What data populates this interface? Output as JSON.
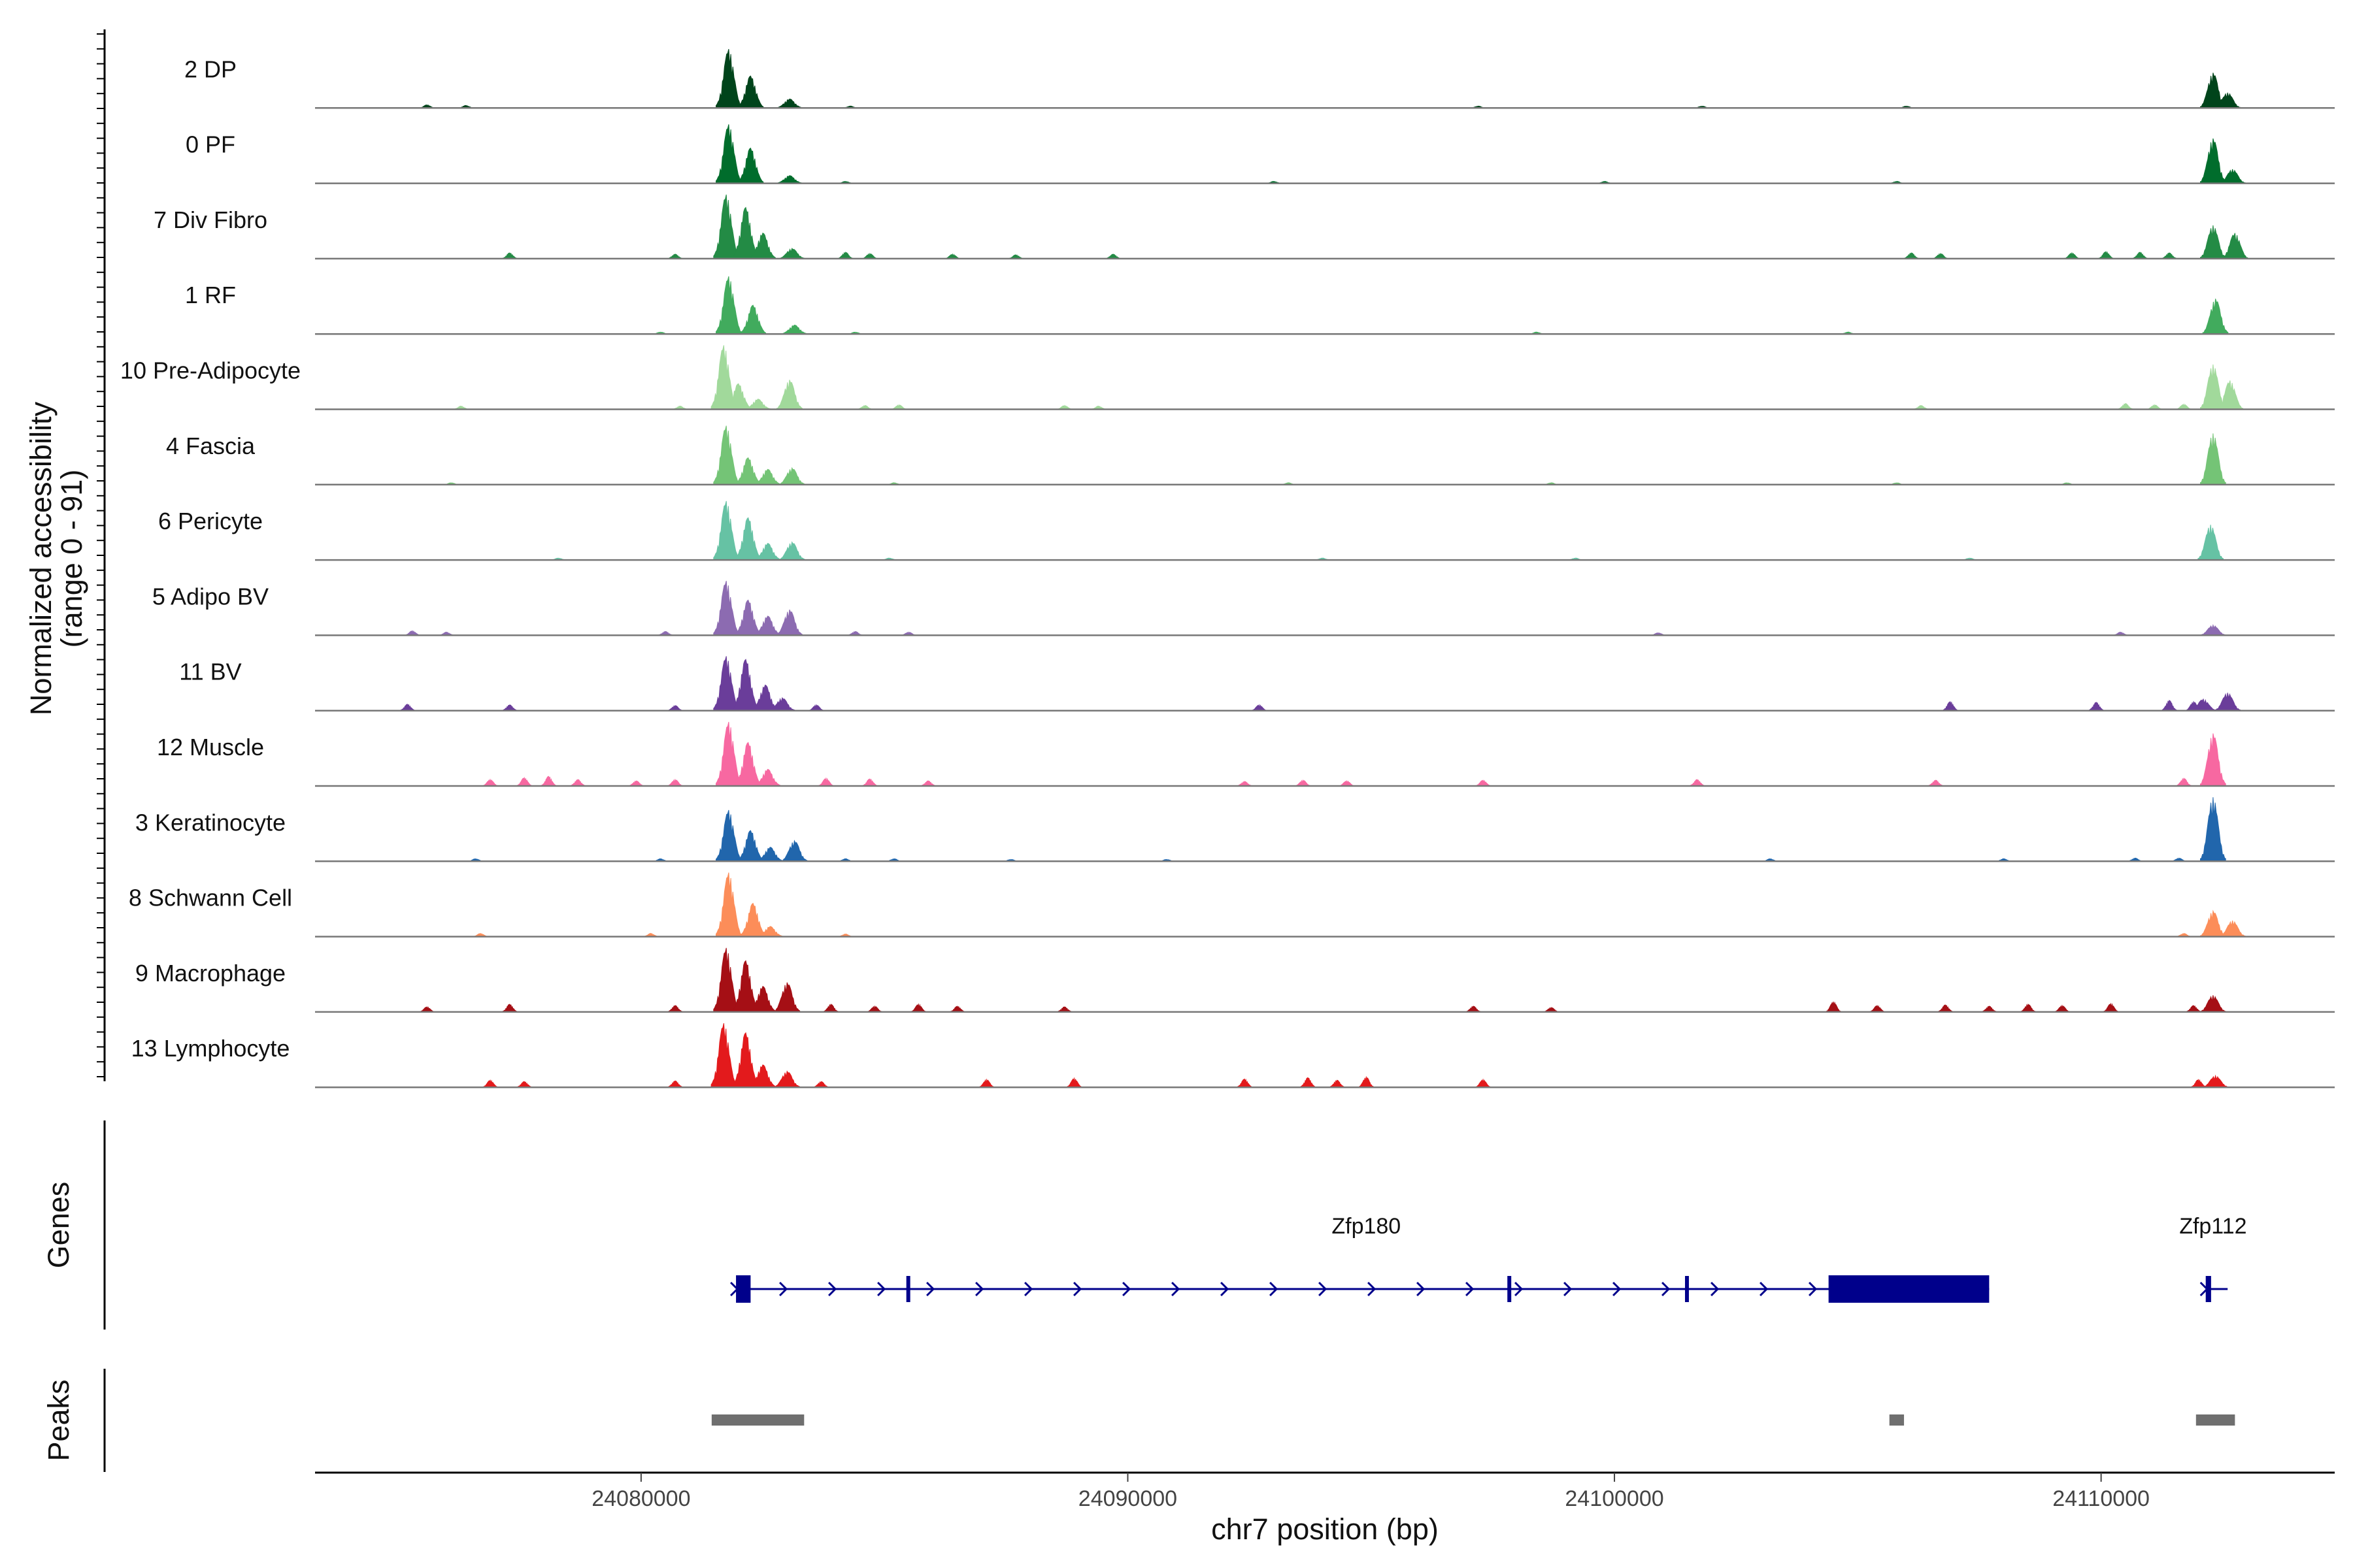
{
  "chart_data": {
    "type": "area",
    "title": "",
    "ylabel_line1": "Normalized accessibility",
    "ylabel_line2": "(range 0 - 91)",
    "xlabel": "chr7 position (bp)",
    "chrom": "chr7",
    "xlim": [
      24073300,
      24114800
    ],
    "ylim": [
      0,
      91
    ],
    "xticks": [
      {
        "value": 24080000,
        "label": "24080000"
      },
      {
        "value": 24090000,
        "label": "24090000"
      },
      {
        "value": 24100000,
        "label": "24100000"
      },
      {
        "value": 24110000,
        "label": "24110000"
      }
    ],
    "tracks": [
      {
        "name": "2 DP",
        "color": "#00441b",
        "peaks": [
          [
            24081800,
            92
          ],
          [
            24082250,
            50
          ],
          [
            24083050,
            14
          ],
          [
            24112300,
            55
          ],
          [
            24112600,
            24
          ]
        ],
        "noise": [
          [
            24075600,
            5
          ],
          [
            24076400,
            4
          ],
          [
            24084300,
            3
          ],
          [
            24097200,
            3
          ],
          [
            24101800,
            3
          ],
          [
            24106000,
            3
          ]
        ]
      },
      {
        "name": "0 PF",
        "color": "#006d2c",
        "peaks": [
          [
            24081800,
            92
          ],
          [
            24082250,
            55
          ],
          [
            24083050,
            12
          ],
          [
            24112300,
            70
          ],
          [
            24112700,
            22
          ]
        ],
        "noise": [
          [
            24084200,
            3
          ],
          [
            24093000,
            3
          ],
          [
            24099800,
            3
          ],
          [
            24105800,
            3
          ]
        ]
      },
      {
        "name": "7 Div Fibro",
        "color": "#238b45",
        "peaks": [
          [
            24081750,
            100
          ],
          [
            24082150,
            80
          ],
          [
            24082500,
            40
          ],
          [
            24083100,
            16
          ],
          [
            24112300,
            52
          ],
          [
            24112750,
            40
          ]
        ],
        "noise": [
          [
            24077300,
            9
          ],
          [
            24080700,
            7
          ],
          [
            24084200,
            10
          ],
          [
            24084700,
            8
          ],
          [
            24086400,
            7
          ],
          [
            24087700,
            6
          ],
          [
            24089700,
            7
          ],
          [
            24106100,
            9
          ],
          [
            24106700,
            8
          ],
          [
            24109400,
            9
          ],
          [
            24110100,
            11
          ],
          [
            24110800,
            10
          ],
          [
            24111400,
            9
          ]
        ]
      },
      {
        "name": "1 RF",
        "color": "#41ab5d",
        "peaks": [
          [
            24081800,
            90
          ],
          [
            24082300,
            45
          ],
          [
            24083150,
            14
          ],
          [
            24112350,
            55
          ]
        ],
        "noise": [
          [
            24080400,
            3
          ],
          [
            24084400,
            3
          ],
          [
            24098400,
            3
          ],
          [
            24104800,
            3
          ]
        ]
      },
      {
        "name": "10 Pre-Adipocyte",
        "color": "#a1d99b",
        "peaks": [
          [
            24081700,
            100
          ],
          [
            24082000,
            40
          ],
          [
            24082400,
            16
          ],
          [
            24083050,
            46
          ],
          [
            24112300,
            70
          ],
          [
            24112650,
            45
          ]
        ],
        "noise": [
          [
            24076300,
            5
          ],
          [
            24080800,
            5
          ],
          [
            24084600,
            6
          ],
          [
            24085300,
            7
          ],
          [
            24088700,
            6
          ],
          [
            24089400,
            5
          ],
          [
            24106300,
            6
          ],
          [
            24110500,
            9
          ],
          [
            24111100,
            7
          ],
          [
            24111700,
            8
          ]
        ]
      },
      {
        "name": "4 Fascia",
        "color": "#74c476",
        "peaks": [
          [
            24081750,
            92
          ],
          [
            24082200,
            42
          ],
          [
            24082600,
            24
          ],
          [
            24083100,
            26
          ],
          [
            24112300,
            80
          ]
        ],
        "noise": [
          [
            24076100,
            3
          ],
          [
            24085200,
            3
          ],
          [
            24093300,
            3
          ],
          [
            24098700,
            3
          ],
          [
            24105800,
            3
          ],
          [
            24109300,
            3
          ]
        ]
      },
      {
        "name": "6 Pericyte",
        "color": "#66c2a4",
        "peaks": [
          [
            24081750,
            92
          ],
          [
            24082200,
            66
          ],
          [
            24082600,
            26
          ],
          [
            24083100,
            28
          ],
          [
            24112250,
            55
          ]
        ],
        "noise": [
          [
            24078300,
            3
          ],
          [
            24085100,
            3
          ],
          [
            24094000,
            3
          ],
          [
            24099200,
            3
          ],
          [
            24107300,
            3
          ]
        ]
      },
      {
        "name": "5 Adipo BV",
        "color": "#8c6bb1",
        "peaks": [
          [
            24081750,
            85
          ],
          [
            24082200,
            55
          ],
          [
            24082600,
            30
          ],
          [
            24083050,
            40
          ],
          [
            24112300,
            16
          ]
        ],
        "noise": [
          [
            24075300,
            7
          ],
          [
            24076000,
            5
          ],
          [
            24080500,
            6
          ],
          [
            24084400,
            6
          ],
          [
            24085500,
            5
          ],
          [
            24100900,
            4
          ],
          [
            24110400,
            5
          ]
        ]
      },
      {
        "name": "11 BV",
        "color": "#6a3d9a",
        "peaks": [
          [
            24081750,
            85
          ],
          [
            24082150,
            80
          ],
          [
            24082550,
            40
          ],
          [
            24082900,
            20
          ],
          [
            24112600,
            28
          ],
          [
            24112100,
            18
          ]
        ],
        "noise": [
          [
            24075200,
            10
          ],
          [
            24077300,
            9
          ],
          [
            24080700,
            8
          ],
          [
            24083600,
            9
          ],
          [
            24092700,
            9
          ],
          [
            24106900,
            14
          ],
          [
            24109900,
            13
          ],
          [
            24111400,
            16
          ],
          [
            24111900,
            14
          ]
        ]
      },
      {
        "name": "12 Muscle",
        "color": "#f768a1",
        "peaks": [
          [
            24081800,
            100
          ],
          [
            24082200,
            68
          ],
          [
            24082600,
            26
          ],
          [
            24112300,
            82
          ]
        ],
        "noise": [
          [
            24076900,
            10
          ],
          [
            24077600,
            13
          ],
          [
            24078100,
            15
          ],
          [
            24078700,
            10
          ],
          [
            24079900,
            8
          ],
          [
            24080700,
            10
          ],
          [
            24083800,
            12
          ],
          [
            24084700,
            11
          ],
          [
            24085900,
            8
          ],
          [
            24092400,
            7
          ],
          [
            24093600,
            9
          ],
          [
            24094500,
            8
          ],
          [
            24097300,
            9
          ],
          [
            24101700,
            10
          ],
          [
            24106600,
            9
          ],
          [
            24111700,
            12
          ]
        ]
      },
      {
        "name": "3 Keratinocyte",
        "color": "#2166ac",
        "peaks": [
          [
            24081800,
            80
          ],
          [
            24082250,
            48
          ],
          [
            24082650,
            22
          ],
          [
            24083150,
            32
          ],
          [
            24112300,
            100
          ]
        ],
        "noise": [
          [
            24076600,
            4
          ],
          [
            24080400,
            4
          ],
          [
            24084200,
            4
          ],
          [
            24085200,
            4
          ],
          [
            24087600,
            3
          ],
          [
            24090800,
            3
          ],
          [
            24103200,
            4
          ],
          [
            24108000,
            4
          ],
          [
            24110700,
            5
          ],
          [
            24111600,
            5
          ]
        ]
      },
      {
        "name": "8 Schwann Cell",
        "color": "#fc8d59",
        "peaks": [
          [
            24081800,
            100
          ],
          [
            24082300,
            52
          ],
          [
            24082650,
            16
          ],
          [
            24112300,
            40
          ],
          [
            24112700,
            25
          ]
        ],
        "noise": [
          [
            24076700,
            5
          ],
          [
            24080200,
            5
          ],
          [
            24084200,
            4
          ],
          [
            24111700,
            5
          ]
        ]
      },
      {
        "name": "9 Macrophage",
        "color": "#a50f15",
        "peaks": [
          [
            24081750,
            100
          ],
          [
            24082150,
            80
          ],
          [
            24082500,
            40
          ],
          [
            24083000,
            46
          ],
          [
            24112300,
            26
          ]
        ],
        "noise": [
          [
            24075600,
            8
          ],
          [
            24077300,
            12
          ],
          [
            24080700,
            10
          ],
          [
            24083900,
            12
          ],
          [
            24084800,
            9
          ],
          [
            24085700,
            12
          ],
          [
            24086500,
            9
          ],
          [
            24088700,
            8
          ],
          [
            24097100,
            9
          ],
          [
            24098700,
            7
          ],
          [
            24104500,
            16
          ],
          [
            24105400,
            10
          ],
          [
            24106800,
            11
          ],
          [
            24107700,
            9
          ],
          [
            24108500,
            12
          ],
          [
            24109200,
            10
          ],
          [
            24110200,
            13
          ],
          [
            24111900,
            10
          ]
        ]
      },
      {
        "name": "13 Lymphocyte",
        "color": "#e31a1c",
        "peaks": [
          [
            24081700,
            100
          ],
          [
            24082150,
            85
          ],
          [
            24082500,
            35
          ],
          [
            24083000,
            25
          ],
          [
            24112350,
            18
          ]
        ],
        "noise": [
          [
            24076900,
            11
          ],
          [
            24077600,
            9
          ],
          [
            24080700,
            10
          ],
          [
            24083700,
            9
          ],
          [
            24087100,
            12
          ],
          [
            24088900,
            14
          ],
          [
            24092400,
            13
          ],
          [
            24093700,
            15
          ],
          [
            24094300,
            11
          ],
          [
            24094900,
            16
          ],
          [
            24097300,
            12
          ],
          [
            24112000,
            12
          ]
        ]
      }
    ],
    "genes": [
      {
        "name": "Zfp180",
        "start": 24081950,
        "end": 24107700,
        "strand": "+",
        "exons": [
          [
            24081950,
            24082250
          ],
          [
            24085450,
            24085530
          ],
          [
            24097800,
            24097880
          ],
          [
            24101450,
            24101530
          ],
          [
            24104400,
            24107700
          ]
        ]
      },
      {
        "name": "Zfp112",
        "start": 24112150,
        "end": 24112600,
        "strand": "+",
        "exons": [
          [
            24112150,
            24112260
          ]
        ]
      }
    ],
    "peaks_track": [
      [
        24081450,
        24083350
      ],
      [
        24105650,
        24105950
      ],
      [
        24111950,
        24112750
      ]
    ],
    "panel_labels": {
      "genes": "Genes",
      "peaks": "Peaks"
    }
  }
}
